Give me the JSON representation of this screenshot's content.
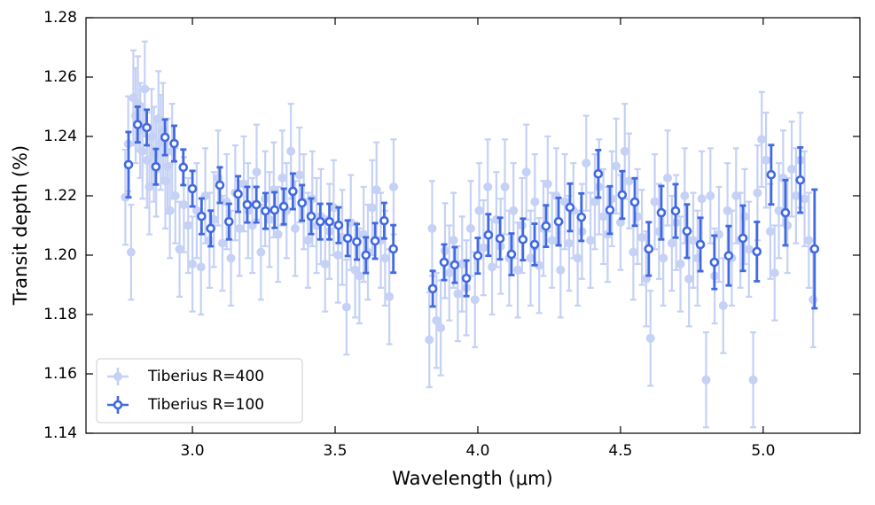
{
  "chart_data": {
    "type": "errorbar",
    "xlabel": "Wavelength (μm)",
    "ylabel": "Transit depth (%)",
    "xlim": [
      2.627,
      5.339
    ],
    "ylim": [
      1.14,
      1.28
    ],
    "xticks": [
      {
        "value": 3,
        "label": "3.0"
      },
      3.5,
      {
        "value": 4,
        "label": "4.0"
      },
      4.5,
      {
        "value": 5,
        "label": "5.0"
      }
    ],
    "yticks": [
      1.14,
      1.16,
      1.18,
      {
        "value": 1.2,
        "label": "1.20"
      },
      1.22,
      1.24,
      1.26,
      1.28
    ],
    "legend": "lower left",
    "series": [
      {
        "name": "Tiberius R=400",
        "color": "#4169e1",
        "style": "light",
        "xerr": 0.006,
        "yerr": 0.016,
        "x": [
          2.765,
          2.775,
          2.785,
          2.793,
          2.801,
          2.809,
          2.817,
          2.825,
          2.833,
          2.841,
          2.849,
          2.857,
          2.865,
          2.873,
          2.881,
          2.889,
          2.897,
          2.905,
          2.913,
          2.921,
          2.929,
          2.94,
          2.955,
          2.97,
          2.985,
          3.0,
          3.015,
          3.03,
          3.045,
          3.06,
          3.075,
          3.09,
          3.105,
          3.12,
          3.135,
          3.15,
          3.165,
          3.18,
          3.195,
          3.21,
          3.225,
          3.24,
          3.255,
          3.27,
          3.285,
          3.3,
          3.315,
          3.33,
          3.345,
          3.36,
          3.375,
          3.39,
          3.405,
          3.42,
          3.435,
          3.45,
          3.465,
          3.48,
          3.495,
          3.51,
          3.525,
          3.54,
          3.555,
          3.57,
          3.585,
          3.6,
          3.615,
          3.63,
          3.645,
          3.66,
          3.675,
          3.69,
          3.705,
          3.83,
          3.84,
          3.855,
          3.87,
          3.885,
          3.9,
          3.915,
          3.93,
          3.945,
          3.96,
          3.975,
          3.99,
          4.005,
          4.02,
          4.035,
          4.05,
          4.065,
          4.08,
          4.095,
          4.11,
          4.125,
          4.14,
          4.155,
          4.17,
          4.185,
          4.2,
          4.215,
          4.23,
          4.245,
          4.26,
          4.275,
          4.29,
          4.305,
          4.32,
          4.335,
          4.35,
          4.365,
          4.38,
          4.395,
          4.41,
          4.425,
          4.44,
          4.455,
          4.47,
          4.485,
          4.5,
          4.515,
          4.53,
          4.545,
          4.56,
          4.575,
          4.59,
          4.605,
          4.62,
          4.635,
          4.65,
          4.665,
          4.68,
          4.695,
          4.71,
          4.725,
          4.74,
          4.755,
          4.77,
          4.785,
          4.8,
          4.815,
          4.83,
          4.845,
          4.86,
          4.875,
          4.89,
          4.905,
          4.92,
          4.935,
          4.95,
          4.965,
          4.98,
          4.995,
          5.01,
          5.025,
          5.04,
          5.055,
          5.07,
          5.085,
          5.1,
          5.115,
          5.13,
          5.145,
          5.16,
          5.175
        ],
        "values": [
          1.2195,
          1.2375,
          1.201,
          1.253,
          1.247,
          1.251,
          1.242,
          1.235,
          1.256,
          1.232,
          1.223,
          1.24,
          1.234,
          1.229,
          1.246,
          1.238,
          1.242,
          1.225,
          1.23,
          1.215,
          1.235,
          1.22,
          1.202,
          1.217,
          1.21,
          1.197,
          1.215,
          1.196,
          1.22,
          1.205,
          1.212,
          1.226,
          1.204,
          1.218,
          1.199,
          1.221,
          1.209,
          1.224,
          1.215,
          1.21,
          1.228,
          1.201,
          1.219,
          1.212,
          1.222,
          1.207,
          1.226,
          1.215,
          1.235,
          1.209,
          1.227,
          1.218,
          1.205,
          1.219,
          1.21,
          1.213,
          1.197,
          1.208,
          1.216,
          1.2,
          1.206,
          1.1825,
          1.211,
          1.195,
          1.193,
          1.207,
          1.201,
          1.216,
          1.222,
          1.205,
          1.199,
          1.186,
          1.223,
          1.1715,
          1.209,
          1.178,
          1.1755,
          1.2015,
          1.194,
          1.205,
          1.187,
          1.197,
          1.189,
          1.209,
          1.185,
          1.215,
          1.2025,
          1.223,
          1.196,
          1.212,
          1.203,
          1.223,
          1.199,
          1.215,
          1.195,
          1.21,
          1.228,
          1.199,
          1.218,
          1.1965,
          1.209,
          1.224,
          1.205,
          1.22,
          1.195,
          1.218,
          1.204,
          1.215,
          1.199,
          1.208,
          1.231,
          1.205,
          1.218,
          1.223,
          1.213,
          1.207,
          1.219,
          1.23,
          1.211,
          1.235,
          1.225,
          1.201,
          1.213,
          1.206,
          1.192,
          1.172,
          1.218,
          1.208,
          1.199,
          1.226,
          1.204,
          1.211,
          1.197,
          1.22,
          1.192,
          1.205,
          1.199,
          1.219,
          1.158,
          1.22,
          1.193,
          1.207,
          1.183,
          1.215,
          1.199,
          1.22,
          1.205,
          1.213,
          1.202,
          1.158,
          1.221,
          1.239,
          1.232,
          1.208,
          1.194,
          1.215,
          1.226,
          1.21,
          1.229,
          1.22,
          1.232,
          1.219,
          1.205,
          1.185
        ]
      },
      {
        "name": "Tiberius R=100",
        "color": "#4169e1",
        "style": "bold",
        "xerr": 0.015,
        "x": [
          2.776,
          2.808,
          2.84,
          2.872,
          2.904,
          2.936,
          2.968,
          3.0,
          3.032,
          3.064,
          3.096,
          3.128,
          3.16,
          3.192,
          3.224,
          3.256,
          3.288,
          3.32,
          3.352,
          3.384,
          3.416,
          3.448,
          3.48,
          3.512,
          3.544,
          3.576,
          3.608,
          3.64,
          3.672,
          3.704,
          3.842,
          3.882,
          3.919,
          3.96,
          4.0,
          4.037,
          4.078,
          4.118,
          4.158,
          4.199,
          4.239,
          4.283,
          4.323,
          4.363,
          4.422,
          4.463,
          4.506,
          4.55,
          4.599,
          4.643,
          4.693,
          4.733,
          4.78,
          4.829,
          4.879,
          4.929,
          4.978,
          5.028,
          5.078,
          5.13,
          5.18
        ],
        "values": [
          1.2305,
          1.244,
          1.243,
          1.2298,
          1.2397,
          1.2376,
          1.2296,
          1.2224,
          1.2131,
          1.209,
          1.2236,
          1.2113,
          1.2206,
          1.217,
          1.217,
          1.2149,
          1.2152,
          1.2164,
          1.2215,
          1.2176,
          1.2131,
          1.2113,
          1.2113,
          1.2101,
          1.2057,
          1.2045,
          1.2,
          1.2048,
          1.2116,
          1.2021,
          1.1887,
          1.1976,
          1.1967,
          1.1922,
          1.1998,
          1.2068,
          1.2056,
          1.2003,
          1.2053,
          1.2036,
          1.2098,
          1.2113,
          1.2161,
          1.2128,
          1.2274,
          1.2152,
          1.2203,
          1.2179,
          1.2021,
          1.2143,
          1.2149,
          1.2081,
          1.2036,
          1.1976,
          1.1998,
          1.2057,
          1.2012,
          1.2271,
          1.2143,
          1.2253,
          1.2021
        ],
        "yerr": [
          0.011,
          0.006,
          0.006,
          0.006,
          0.006,
          0.006,
          0.006,
          0.006,
          0.006,
          0.006,
          0.006,
          0.006,
          0.006,
          0.006,
          0.006,
          0.006,
          0.006,
          0.006,
          0.006,
          0.006,
          0.006,
          0.006,
          0.006,
          0.006,
          0.006,
          0.006,
          0.006,
          0.006,
          0.006,
          0.008,
          0.006,
          0.006,
          0.006,
          0.006,
          0.006,
          0.007,
          0.007,
          0.007,
          0.007,
          0.007,
          0.007,
          0.008,
          0.008,
          0.008,
          0.008,
          0.008,
          0.008,
          0.008,
          0.009,
          0.009,
          0.009,
          0.009,
          0.009,
          0.009,
          0.01,
          0.011,
          0.01,
          0.01,
          0.011,
          0.011,
          0.02
        ]
      }
    ]
  }
}
